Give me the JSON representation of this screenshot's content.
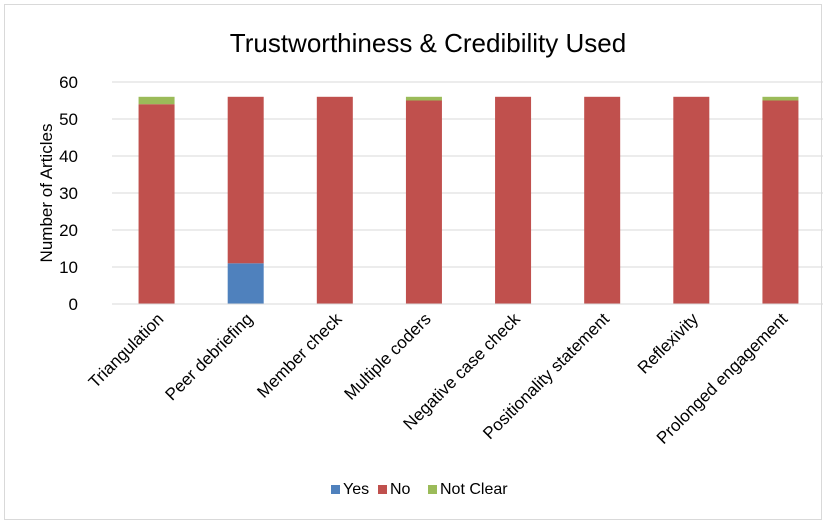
{
  "chart_data": {
    "type": "bar",
    "stacked": true,
    "title": "Trustworthiness & Credibility Used",
    "ylabel": "Number of Articles",
    "ylim": [
      0,
      60
    ],
    "yticks": [
      "0",
      "10",
      "20",
      "30",
      "40",
      "50",
      "60"
    ],
    "grid": true,
    "legend": "bottom",
    "categories": [
      "Triangulation",
      "Peer debriefing",
      "Member check",
      "Multiple coders",
      "Negative case check",
      "Positionality statement",
      "Reflexivity",
      "Prolonged engagement"
    ],
    "series": [
      {
        "name": "Yes",
        "color": "#4F81BD",
        "values": [
          0,
          11,
          0,
          0,
          0,
          0,
          0,
          0
        ]
      },
      {
        "name": "No",
        "color": "#C0504D",
        "values": [
          54,
          45,
          56,
          55,
          56,
          56,
          56,
          55
        ]
      },
      {
        "name": "Not Clear",
        "color": "#9BBB59",
        "values": [
          2,
          0,
          0,
          1,
          0,
          0,
          0,
          1
        ]
      }
    ]
  }
}
